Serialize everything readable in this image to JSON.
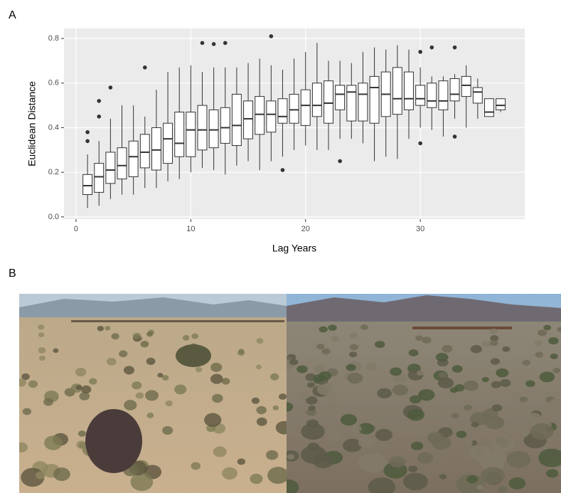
{
  "panels": {
    "a_label": "A",
    "b_label": "B"
  },
  "chart_data": {
    "type": "boxplot",
    "x_label": "Lag Years",
    "y_label": "Euclidean Distance",
    "xlim": [
      -1.05,
      39.1
    ],
    "ylim": [
      -0.01,
      0.845
    ],
    "xticks": [
      0,
      10,
      20,
      30
    ],
    "yticks": [
      {
        "value": 0,
        "label": "0.0"
      },
      {
        "value": 0.2,
        "label": "0.2"
      },
      {
        "value": 0.4,
        "label": "0.4"
      },
      {
        "value": 0.6,
        "label": "0.6"
      },
      {
        "value": 0.8,
        "label": "0.8"
      }
    ],
    "grid": true,
    "panel_color": "#ebebeb",
    "box_color": "#333333",
    "x": [
      1,
      2,
      3,
      4,
      5,
      6,
      7,
      8,
      9,
      10,
      11,
      12,
      13,
      14,
      15,
      16,
      17,
      18,
      19,
      20,
      21,
      22,
      23,
      24,
      25,
      26,
      27,
      28,
      29,
      30,
      31,
      32,
      33,
      34,
      35,
      36,
      37
    ],
    "boxes": [
      {
        "min": 0.04,
        "q1": 0.1,
        "median": 0.14,
        "q3": 0.19,
        "max": 0.28,
        "outliers": [
          0.34,
          0.38
        ]
      },
      {
        "min": 0.05,
        "q1": 0.11,
        "median": 0.18,
        "q3": 0.24,
        "max": 0.34,
        "outliers": [
          0.45,
          0.52
        ]
      },
      {
        "min": 0.08,
        "q1": 0.15,
        "median": 0.21,
        "q3": 0.29,
        "max": 0.44,
        "outliers": [
          0.58
        ]
      },
      {
        "min": 0.1,
        "q1": 0.17,
        "median": 0.23,
        "q3": 0.31,
        "max": 0.5,
        "outliers": []
      },
      {
        "min": 0.1,
        "q1": 0.18,
        "median": 0.27,
        "q3": 0.34,
        "max": 0.5,
        "outliers": []
      },
      {
        "min": 0.13,
        "q1": 0.22,
        "median": 0.29,
        "q3": 0.37,
        "max": 0.45,
        "outliers": [
          0.67
        ]
      },
      {
        "min": 0.13,
        "q1": 0.21,
        "median": 0.3,
        "q3": 0.4,
        "max": 0.57,
        "outliers": []
      },
      {
        "min": 0.16,
        "q1": 0.24,
        "median": 0.35,
        "q3": 0.42,
        "max": 0.65,
        "outliers": []
      },
      {
        "min": 0.17,
        "q1": 0.27,
        "median": 0.33,
        "q3": 0.47,
        "max": 0.67,
        "outliers": []
      },
      {
        "min": 0.2,
        "q1": 0.27,
        "median": 0.39,
        "q3": 0.47,
        "max": 0.68,
        "outliers": []
      },
      {
        "min": 0.22,
        "q1": 0.3,
        "median": 0.39,
        "q3": 0.5,
        "max": 0.65,
        "outliers": [
          0.78
        ]
      },
      {
        "min": 0.21,
        "q1": 0.31,
        "median": 0.39,
        "q3": 0.48,
        "max": 0.67,
        "outliers": [
          0.775
        ]
      },
      {
        "min": 0.19,
        "q1": 0.33,
        "median": 0.4,
        "q3": 0.49,
        "max": 0.67,
        "outliers": [
          0.78
        ]
      },
      {
        "min": 0.23,
        "q1": 0.32,
        "median": 0.41,
        "q3": 0.55,
        "max": 0.67,
        "outliers": []
      },
      {
        "min": 0.25,
        "q1": 0.35,
        "median": 0.44,
        "q3": 0.52,
        "max": 0.69,
        "outliers": []
      },
      {
        "min": 0.21,
        "q1": 0.37,
        "median": 0.46,
        "q3": 0.54,
        "max": 0.71,
        "outliers": []
      },
      {
        "min": 0.25,
        "q1": 0.38,
        "median": 0.46,
        "q3": 0.52,
        "max": 0.68,
        "outliers": [
          0.81
        ]
      },
      {
        "min": 0.27,
        "q1": 0.42,
        "median": 0.45,
        "q3": 0.53,
        "max": 0.66,
        "outliers": [
          0.21
        ]
      },
      {
        "min": 0.3,
        "q1": 0.42,
        "median": 0.48,
        "q3": 0.55,
        "max": 0.71,
        "outliers": []
      },
      {
        "min": 0.32,
        "q1": 0.41,
        "median": 0.5,
        "q3": 0.57,
        "max": 0.74,
        "outliers": []
      },
      {
        "min": 0.3,
        "q1": 0.45,
        "median": 0.5,
        "q3": 0.6,
        "max": 0.78,
        "outliers": []
      },
      {
        "min": 0.3,
        "q1": 0.42,
        "median": 0.51,
        "q3": 0.61,
        "max": 0.7,
        "outliers": []
      },
      {
        "min": 0.35,
        "q1": 0.48,
        "median": 0.55,
        "q3": 0.59,
        "max": 0.7,
        "outliers": [
          0.25
        ]
      },
      {
        "min": 0.35,
        "q1": 0.43,
        "median": 0.56,
        "q3": 0.59,
        "max": 0.69,
        "outliers": []
      },
      {
        "min": 0.33,
        "q1": 0.43,
        "median": 0.55,
        "q3": 0.6,
        "max": 0.74,
        "outliers": []
      },
      {
        "min": 0.25,
        "q1": 0.42,
        "median": 0.58,
        "q3": 0.63,
        "max": 0.76,
        "outliers": []
      },
      {
        "min": 0.27,
        "q1": 0.45,
        "median": 0.55,
        "q3": 0.65,
        "max": 0.75,
        "outliers": []
      },
      {
        "min": 0.26,
        "q1": 0.46,
        "median": 0.53,
        "q3": 0.67,
        "max": 0.77,
        "outliers": []
      },
      {
        "min": 0.35,
        "q1": 0.48,
        "median": 0.53,
        "q3": 0.65,
        "max": 0.75,
        "outliers": []
      },
      {
        "min": 0.4,
        "q1": 0.5,
        "median": 0.53,
        "q3": 0.59,
        "max": 0.67,
        "outliers": [
          0.33,
          0.74
        ]
      },
      {
        "min": 0.39,
        "q1": 0.49,
        "median": 0.52,
        "q3": 0.6,
        "max": 0.63,
        "outliers": [
          0.76
        ]
      },
      {
        "min": 0.36,
        "q1": 0.48,
        "median": 0.52,
        "q3": 0.61,
        "max": 0.63,
        "outliers": []
      },
      {
        "min": 0.44,
        "q1": 0.52,
        "median": 0.55,
        "q3": 0.62,
        "max": 0.64,
        "outliers": [
          0.36,
          0.76
        ]
      },
      {
        "min": 0.4,
        "q1": 0.54,
        "median": 0.59,
        "q3": 0.63,
        "max": 0.68,
        "outliers": []
      },
      {
        "min": 0.44,
        "q1": 0.51,
        "median": 0.56,
        "q3": 0.58,
        "max": 0.62,
        "outliers": []
      },
      {
        "min": 0.45,
        "q1": 0.45,
        "median": 0.47,
        "q3": 0.53,
        "max": 0.53,
        "outliers": []
      },
      {
        "min": 0.47,
        "q1": 0.48,
        "median": 0.5,
        "q3": 0.53,
        "max": 0.53,
        "outliers": []
      }
    ]
  }
}
